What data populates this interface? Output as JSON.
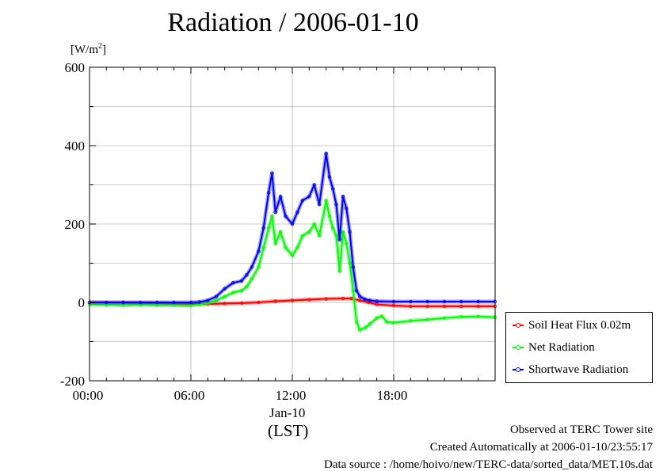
{
  "title": "Radiation / 2006-01-10",
  "unit_label": "[W/m",
  "unit_sup": "2",
  "unit_close": "]",
  "chart_data": {
    "type": "line",
    "x_unit": "hours LST",
    "xlim": [
      0,
      24
    ],
    "ylim": [
      -200,
      600
    ],
    "y_ticks": [
      -200,
      0,
      200,
      400,
      600
    ],
    "x_ticks": [
      0,
      6,
      12,
      18
    ],
    "x_tick_labels": [
      "00:00",
      "06:00",
      "12:00",
      "18:00"
    ],
    "date_label": "Jan-10",
    "xlabel": "(LST)",
    "grid": true,
    "legend_position": "right",
    "series": [
      {
        "name": "Soil Heat Flux 0.02m",
        "color": "#ff0000",
        "x": [
          0,
          2,
          4,
          6,
          7,
          8,
          9,
          10,
          11,
          12,
          13,
          14,
          15,
          15.5,
          16,
          16.5,
          17,
          18,
          19,
          20,
          21,
          22,
          23,
          24
        ],
        "y": [
          0,
          -1,
          -2,
          -4,
          -4,
          -3,
          -2,
          0,
          3,
          5,
          7,
          9,
          10,
          10,
          5,
          0,
          -5,
          -8,
          -10,
          -10,
          -10,
          -10,
          -10,
          -10
        ]
      },
      {
        "name": "Net Radiation",
        "color": "#00ff00",
        "x": [
          0,
          1,
          2,
          3,
          4,
          5,
          6,
          6.5,
          7,
          7.5,
          8,
          8.5,
          9,
          9.3,
          9.6,
          10,
          10.3,
          10.6,
          10.8,
          11,
          11.3,
          11.6,
          12,
          12.3,
          12.6,
          13,
          13.3,
          13.6,
          14,
          14.2,
          14.4,
          14.6,
          14.8,
          15,
          15.2,
          15.4,
          15.6,
          15.8,
          16,
          16.3,
          16.6,
          17,
          17.3,
          17.6,
          18,
          19,
          20,
          21,
          22,
          23,
          24
        ],
        "y": [
          -5,
          -6,
          -7,
          -6,
          -7,
          -7,
          -8,
          -5,
          -2,
          5,
          15,
          25,
          30,
          40,
          60,
          90,
          140,
          190,
          220,
          150,
          180,
          140,
          120,
          140,
          170,
          180,
          200,
          170,
          260,
          220,
          190,
          170,
          80,
          180,
          150,
          100,
          30,
          -50,
          -70,
          -65,
          -55,
          -40,
          -35,
          -50,
          -52,
          -47,
          -44,
          -40,
          -37,
          -36,
          -38
        ]
      },
      {
        "name": "Shortwave Radiation",
        "color": "#0000ff",
        "x": [
          0,
          1,
          2,
          3,
          4,
          5,
          6,
          6.5,
          7,
          7.5,
          8,
          8.5,
          9,
          9.3,
          9.6,
          10,
          10.3,
          10.6,
          10.8,
          11,
          11.3,
          11.6,
          12,
          12.3,
          12.6,
          13,
          13.3,
          13.6,
          14,
          14.2,
          14.4,
          14.6,
          14.8,
          15,
          15.2,
          15.4,
          15.6,
          15.8,
          16,
          16.3,
          16.6,
          17,
          18,
          19,
          20,
          21,
          22,
          23,
          24
        ],
        "y": [
          0,
          0,
          0,
          0,
          0,
          0,
          0,
          1,
          5,
          15,
          35,
          50,
          55,
          70,
          90,
          130,
          190,
          280,
          330,
          230,
          270,
          220,
          200,
          230,
          260,
          270,
          300,
          250,
          380,
          320,
          290,
          250,
          160,
          270,
          240,
          180,
          90,
          30,
          15,
          8,
          5,
          3,
          2,
          2,
          2,
          2,
          2,
          2,
          2
        ]
      }
    ]
  },
  "footer": {
    "line1": "Observed at TERC Tower site",
    "line2": "Created Automatically at 2006-01-10/23:55:17",
    "line3": "Data source : /home/hoivo/new/TERC-data/sorted_data/MET.10s.dat"
  }
}
